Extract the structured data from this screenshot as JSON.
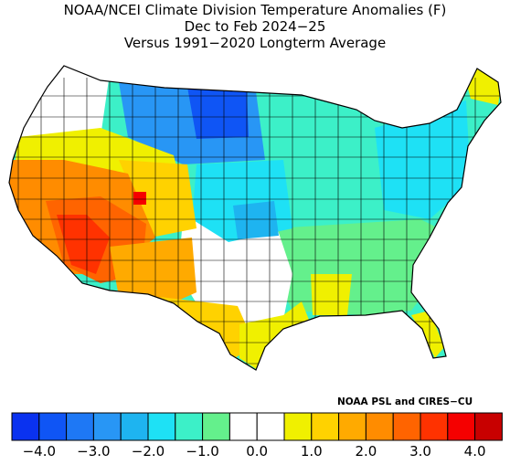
{
  "title": {
    "line1": "NOAA/NCEI Climate Division Temperature Anomalies (F)",
    "line2": "Dec to Feb 2024−25",
    "line3": "Versus 1991−2020 Longterm Average"
  },
  "credit": "NOAA PSL and CIRES−CU",
  "legend": {
    "bins": [
      {
        "min": -4.5,
        "max": -4.0,
        "color": "#0a32f0"
      },
      {
        "min": -4.0,
        "max": -3.5,
        "color": "#0f55f5"
      },
      {
        "min": -3.5,
        "max": -3.0,
        "color": "#1e78f5"
      },
      {
        "min": -3.0,
        "max": -2.5,
        "color": "#2896f5"
      },
      {
        "min": -2.5,
        "max": -2.0,
        "color": "#1eb4f0"
      },
      {
        "min": -2.0,
        "max": -1.5,
        "color": "#1ee1f5"
      },
      {
        "min": -1.5,
        "max": -1.0,
        "color": "#3cf0c8"
      },
      {
        "min": -1.0,
        "max": -0.5,
        "color": "#64f08c"
      },
      {
        "min": -0.5,
        "max": 0.0,
        "color": "#ffffff"
      },
      {
        "min": 0.0,
        "max": 0.5,
        "color": "#ffffff"
      },
      {
        "min": 0.5,
        "max": 1.0,
        "color": "#f0f000"
      },
      {
        "min": 1.0,
        "max": 1.5,
        "color": "#ffd200"
      },
      {
        "min": 1.5,
        "max": 2.0,
        "color": "#ffaa00"
      },
      {
        "min": 2.0,
        "max": 2.5,
        "color": "#ff8c00"
      },
      {
        "min": 2.5,
        "max": 3.0,
        "color": "#ff6400"
      },
      {
        "min": 3.0,
        "max": 3.5,
        "color": "#ff3200"
      },
      {
        "min": 3.5,
        "max": 4.0,
        "color": "#f50000"
      },
      {
        "min": 4.0,
        "max": 4.5,
        "color": "#c80000"
      }
    ],
    "tick_labels": [
      "−4.0",
      "−3.0",
      "−2.0",
      "−1.0",
      "0.0",
      "1.0",
      "2.0",
      "3.0",
      "4.0"
    ],
    "tick_values": [
      -4.0,
      -3.0,
      -2.0,
      -1.0,
      0.0,
      1.0,
      2.0,
      3.0,
      4.0
    ]
  },
  "map": {
    "subject": "Contiguous United States climate divisions",
    "regions": [
      {
        "region": "Pacific Northwest coast / Washington",
        "anomaly_class": "near normal",
        "color": "#ffffff"
      },
      {
        "region": "Oregon / Idaho",
        "anomaly_class": "+0.5 to +1.0",
        "color": "#f0f000"
      },
      {
        "region": "California / Nevada",
        "anomaly_class": "+1.5 to +2.5",
        "color": "#ff8c00"
      },
      {
        "region": "Southern California / Arizona / Utah",
        "anomaly_class": "+2.5 to +3.5",
        "color": "#ff3200"
      },
      {
        "region": "Southern Arizona / New Mexico",
        "anomaly_class": "+1.0 to +2.0",
        "color": "#ffaa00"
      },
      {
        "region": "West Texas",
        "anomaly_class": "+1.0 to +1.5",
        "color": "#ffd200"
      },
      {
        "region": "Northern Plains (Dakotas / Minnesota)",
        "anomaly_class": "−4.0 to −2.0",
        "color": "#0f55f5"
      },
      {
        "region": "Central Plains / Kansas / Missouri",
        "anomaly_class": "−2.0 to −1.0",
        "color": "#1ee1f5"
      },
      {
        "region": "Ohio Valley / Midwest",
        "anomaly_class": "−1.5 to −1.0",
        "color": "#3cf0c8"
      },
      {
        "region": "Mid-Atlantic / New England",
        "anomaly_class": "−2.0 to −1.5",
        "color": "#1ee1f5"
      },
      {
        "region": "Southeast",
        "anomaly_class": "−1.0 to −0.5",
        "color": "#64f08c"
      },
      {
        "region": "Gulf Coast / Florida peninsula",
        "anomaly_class": "+0.5 to +1.0",
        "color": "#f0f000"
      },
      {
        "region": "Northern Maine",
        "anomaly_class": "+0.5 to +1.0",
        "color": "#f0f000"
      },
      {
        "region": "Central Texas / Oklahoma",
        "anomaly_class": "near normal",
        "color": "#ffffff"
      }
    ]
  }
}
